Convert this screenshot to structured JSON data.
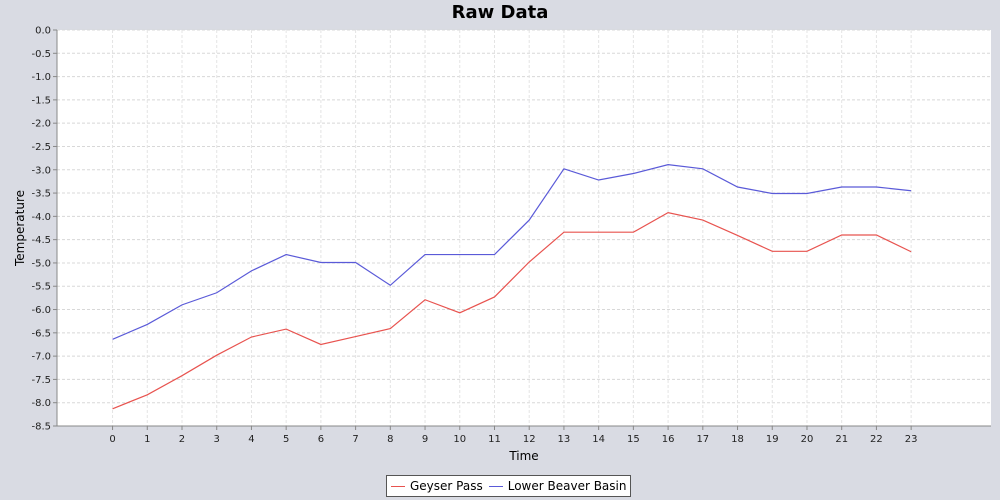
{
  "chart_data": {
    "type": "line",
    "title": "Raw Data",
    "xlabel": "Time",
    "ylabel": "Temperature",
    "x": [
      0,
      1,
      2,
      3,
      4,
      5,
      6,
      7,
      8,
      9,
      10,
      11,
      12,
      13,
      14,
      15,
      16,
      17,
      18,
      19,
      20,
      21,
      22,
      23
    ],
    "xlim": [
      -1.6,
      25.3
    ],
    "ylim": [
      -8.5,
      0.0
    ],
    "y_ticks": [
      "0.0",
      "-0.5",
      "-1.0",
      "-1.5",
      "-2.0",
      "-2.5",
      "-3.0",
      "-3.5",
      "-4.0",
      "-4.5",
      "-5.0",
      "-5.5",
      "-6.0",
      "-6.5",
      "-7.0",
      "-7.5",
      "-8.0",
      "-8.5"
    ],
    "grid": true,
    "legend_position": "bottom",
    "series": [
      {
        "name": "Geyser Pass",
        "color": "#e8534f",
        "values": [
          -8.13,
          -7.83,
          -7.42,
          -6.98,
          -6.59,
          -6.42,
          -6.75,
          -6.58,
          -6.41,
          -5.79,
          -6.07,
          -5.73,
          -4.98,
          -4.34,
          -4.34,
          -4.34,
          -3.92,
          -4.08,
          -4.41,
          -4.75,
          -4.75,
          -4.4,
          -4.4,
          -4.76
        ]
      },
      {
        "name": "Lower Beaver Basin",
        "color": "#5a5ad8",
        "values": [
          -6.64,
          -6.32,
          -5.9,
          -5.64,
          -5.17,
          -4.82,
          -4.99,
          -4.99,
          -5.48,
          -4.82,
          -4.82,
          -4.82,
          -4.08,
          -2.98,
          -3.22,
          -3.08,
          -2.89,
          -2.98,
          -3.37,
          -3.51,
          -3.51,
          -3.37,
          -3.37,
          -3.45
        ]
      }
    ]
  }
}
